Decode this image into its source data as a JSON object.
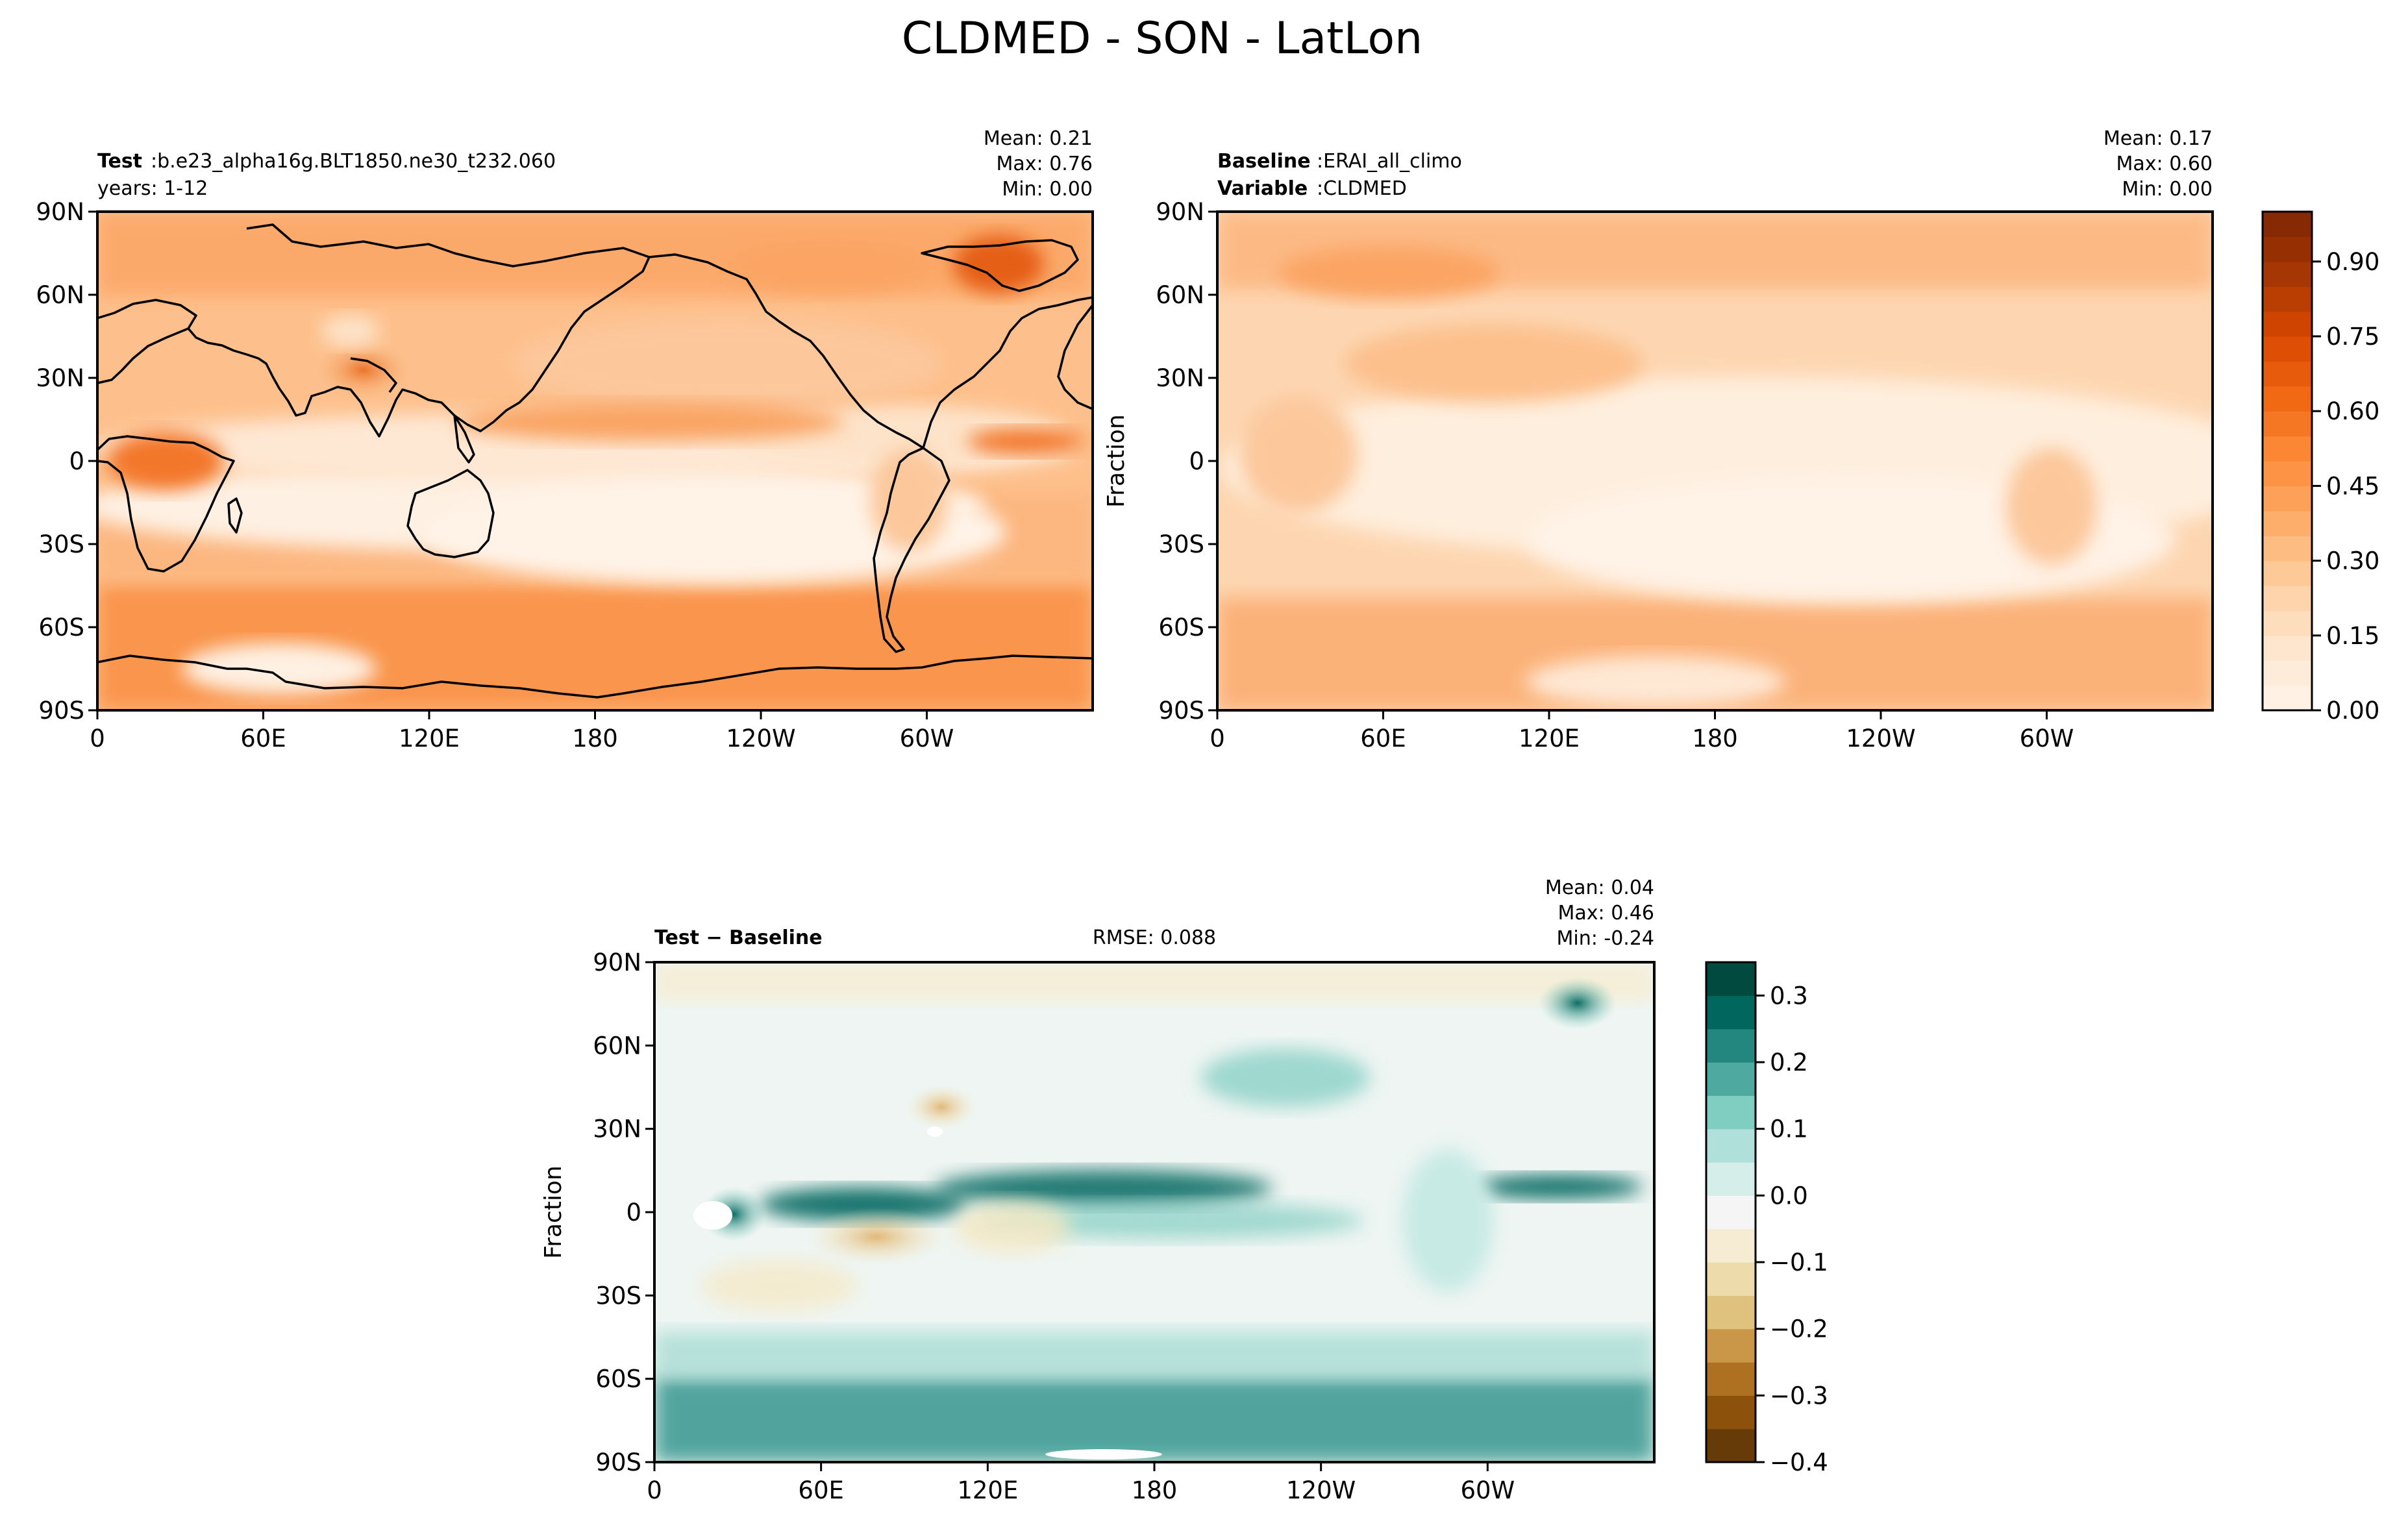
{
  "figure": {
    "title": "CLDMED - SON - LatLon"
  },
  "chart_data": [
    {
      "type": "heatmap",
      "panel": "test",
      "title_bold": "Test",
      "title_rest": ":b.e23_alpha16g.BLT1850.ne30_t232.060",
      "subtitle": "years: 1-12",
      "stats": {
        "mean": "Mean:  0.21",
        "max": "Max:  0.76",
        "min": "Min:  0.00"
      },
      "ylabel": "",
      "x_ticks": [
        "0",
        "60E",
        "120E",
        "180",
        "120W",
        "60W"
      ],
      "y_ticks": [
        "90N",
        "60N",
        "30N",
        "0",
        "30S",
        "60S",
        "90S"
      ],
      "xlim": [
        0,
        360
      ],
      "ylim": [
        -90,
        90
      ],
      "colormap": "Oranges",
      "colorbar": "cb1"
    },
    {
      "type": "heatmap",
      "panel": "baseline",
      "title_bold": "Baseline",
      "title_rest": ":ERAI_all_climo",
      "subtitle_bold": "Variable",
      "subtitle_rest": ":CLDMED",
      "stats": {
        "mean": "Mean:  0.17",
        "max": "Max:  0.60",
        "min": "Min:  0.00"
      },
      "ylabel": "Fraction",
      "x_ticks": [
        "0",
        "60E",
        "120E",
        "180",
        "120W",
        "60W"
      ],
      "y_ticks": [
        "90N",
        "60N",
        "30N",
        "0",
        "30S",
        "60S",
        "90S"
      ],
      "xlim": [
        0,
        360
      ],
      "ylim": [
        -90,
        90
      ],
      "colormap": "Oranges",
      "colorbar": "cb1"
    },
    {
      "type": "heatmap",
      "panel": "diff",
      "title_bold": "Test − Baseline",
      "rmse": "RMSE: 0.088",
      "stats": {
        "mean": "Mean:  0.04",
        "max": "Max:  0.46",
        "min": "Min: -0.24"
      },
      "ylabel": "Fraction",
      "x_ticks": [
        "0",
        "60E",
        "120E",
        "180",
        "120W",
        "60W"
      ],
      "y_ticks": [
        "90N",
        "60N",
        "30N",
        "0",
        "30S",
        "60S",
        "90S"
      ],
      "xlim": [
        0,
        360
      ],
      "ylim": [
        -90,
        90
      ],
      "colormap": "BrBG",
      "colorbar": "cb2"
    }
  ],
  "colorbars": {
    "cb1": {
      "range": [
        0.0,
        1.0
      ],
      "ticks": [
        0.0,
        0.15,
        0.3,
        0.45,
        0.6,
        0.75,
        0.9
      ],
      "tick_labels": [
        "0.00",
        "0.15",
        "0.30",
        "0.45",
        "0.60",
        "0.75",
        "0.90"
      ],
      "levels": 20,
      "colors": [
        "#fff5eb",
        "#fee6ce",
        "#fdd0a2",
        "#fdae6b",
        "#fd8d3c",
        "#f16913",
        "#d94801",
        "#a63603",
        "#7f2704"
      ]
    },
    "cb2": {
      "range": [
        -0.4,
        0.35
      ],
      "ticks": [
        0.3,
        0.2,
        0.1,
        0.0,
        -0.1,
        -0.2,
        -0.3,
        -0.4
      ],
      "tick_labels": [
        "0.3",
        "0.2",
        "0.1",
        "0.0",
        "−0.1",
        "−0.2",
        "−0.3",
        "−0.4"
      ],
      "levels": 15,
      "colors": [
        "#543005",
        "#8c510a",
        "#bf812d",
        "#dfc27d",
        "#f6e8c3",
        "#f5f5f5",
        "#c7eae5",
        "#80cdc1",
        "#35978f",
        "#01665e",
        "#003c30"
      ]
    }
  }
}
